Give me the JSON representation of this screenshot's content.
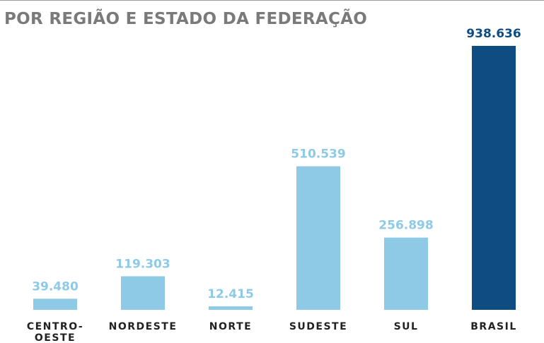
{
  "chart_data": {
    "type": "bar",
    "title": "POR REGIÃO E ESTADO DA FEDERAÇÃO",
    "categories": [
      "CENTRO-\nOESTE",
      "NORDESTE",
      "NORTE",
      "SUDESTE",
      "SUL",
      "BRASIL"
    ],
    "values": [
      39480,
      119303,
      12415,
      510539,
      256898,
      938636
    ],
    "value_labels": [
      "39.480",
      "119.303",
      "12.415",
      "510.539",
      "256.898",
      "938.636"
    ],
    "highlight_category": "BRASIL",
    "colors": {
      "bar": "#8ecae6",
      "bar_label": "#8ecae6",
      "highlight_bar": "#0f4c81",
      "highlight_label": "#0f4c81",
      "category_label": "#222222",
      "title": "#7a7a7a"
    },
    "xlabel": "",
    "ylabel": "",
    "ylim": [
      0,
      938636
    ],
    "grid": false
  }
}
